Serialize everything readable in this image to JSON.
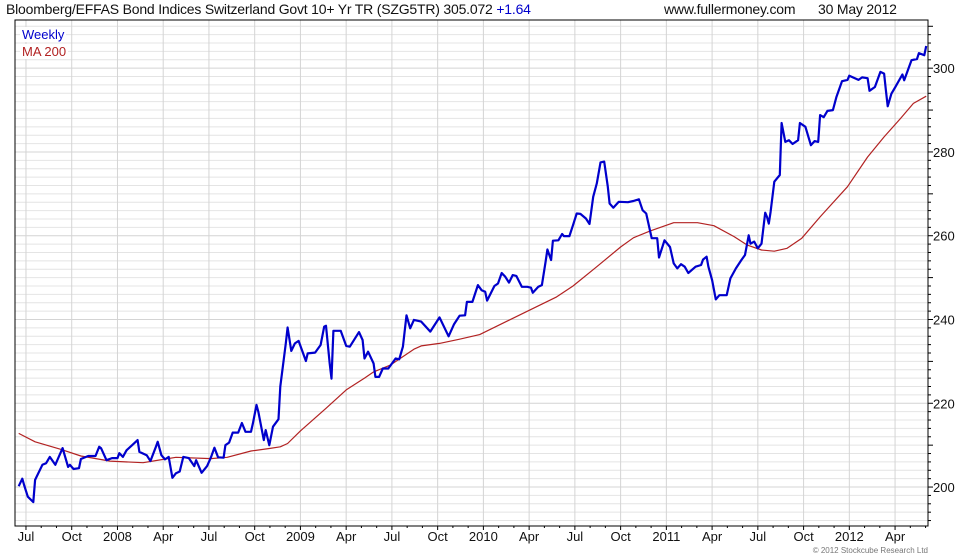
{
  "header": {
    "title": "Bloomberg/EFFAS Bond Indices Switzerland Govt 10+ Yr TR (SZG5TR)",
    "last_value": "305.072",
    "change": "+1.64",
    "site": "www.fullermoney.com",
    "date": "30 May 2012"
  },
  "footer": {
    "copyright": "© 2012 Stockcube Research Ltd"
  },
  "colors": {
    "weekly": "#0000cc",
    "ma200": "#b22222",
    "grid": "#e4e4e4",
    "grid_major": "#d4d4d4"
  },
  "chart_data": {
    "type": "line",
    "title": "Bloomberg/EFFAS Bond Indices Switzerland Govt 10+ Yr TR (SZG5TR)",
    "xlabel": "",
    "ylabel": "",
    "xlim": [
      2007.44,
      2012.43
    ],
    "ylim": [
      190.7,
      311.5
    ],
    "grid": true,
    "legend_position": "top-left",
    "y_axis_side": "right",
    "yticks": [
      200,
      220,
      240,
      260,
      280,
      300
    ],
    "xticks": [
      {
        "t": 2007.5,
        "label": "Jul"
      },
      {
        "t": 2007.75,
        "label": "Oct"
      },
      {
        "t": 2008.0,
        "label": "2008"
      },
      {
        "t": 2008.25,
        "label": "Apr"
      },
      {
        "t": 2008.5,
        "label": "Jul"
      },
      {
        "t": 2008.75,
        "label": "Oct"
      },
      {
        "t": 2009.0,
        "label": "2009"
      },
      {
        "t": 2009.25,
        "label": "Apr"
      },
      {
        "t": 2009.5,
        "label": "Jul"
      },
      {
        "t": 2009.75,
        "label": "Oct"
      },
      {
        "t": 2010.0,
        "label": "2010"
      },
      {
        "t": 2010.25,
        "label": "Apr"
      },
      {
        "t": 2010.5,
        "label": "Jul"
      },
      {
        "t": 2010.75,
        "label": "Oct"
      },
      {
        "t": 2011.0,
        "label": "2011"
      },
      {
        "t": 2011.25,
        "label": "Apr"
      },
      {
        "t": 2011.5,
        "label": "Jul"
      },
      {
        "t": 2011.75,
        "label": "Oct"
      },
      {
        "t": 2012.0,
        "label": "2012"
      },
      {
        "t": 2012.25,
        "label": "Apr"
      }
    ],
    "series": [
      {
        "name": "Weekly",
        "color": "#0000cc",
        "points": [
          [
            2007.46,
            200.2
          ],
          [
            2007.48,
            202
          ],
          [
            2007.49,
            200.5
          ],
          [
            2007.51,
            197.7
          ],
          [
            2007.54,
            196.4
          ],
          [
            2007.55,
            201.7
          ],
          [
            2007.59,
            205.3
          ],
          [
            2007.61,
            205.7
          ],
          [
            2007.63,
            207.2
          ],
          [
            2007.66,
            205.3
          ],
          [
            2007.7,
            209.3
          ],
          [
            2007.73,
            204.8
          ],
          [
            2007.74,
            205.3
          ],
          [
            2007.76,
            204.3
          ],
          [
            2007.79,
            204.5
          ],
          [
            2007.8,
            206.7
          ],
          [
            2007.84,
            207.4
          ],
          [
            2007.88,
            207.4
          ],
          [
            2007.9,
            209.6
          ],
          [
            2007.91,
            209.3
          ],
          [
            2007.94,
            206.4
          ],
          [
            2007.97,
            206.9
          ],
          [
            2008.0,
            206.9
          ],
          [
            2008.01,
            208.1
          ],
          [
            2008.03,
            207.2
          ],
          [
            2008.05,
            208.8
          ],
          [
            2008.08,
            210
          ],
          [
            2008.11,
            211.2
          ],
          [
            2008.12,
            208.4
          ],
          [
            2008.16,
            207.6
          ],
          [
            2008.18,
            206.2
          ],
          [
            2008.21,
            209.6
          ],
          [
            2008.22,
            210.8
          ],
          [
            2008.24,
            207.6
          ],
          [
            2008.26,
            206.6
          ],
          [
            2008.28,
            207.2
          ],
          [
            2008.3,
            202.2
          ],
          [
            2008.32,
            203.3
          ],
          [
            2008.34,
            203.7
          ],
          [
            2008.36,
            207.2
          ],
          [
            2008.39,
            206.9
          ],
          [
            2008.42,
            205
          ],
          [
            2008.43,
            206.4
          ],
          [
            2008.46,
            203.4
          ],
          [
            2008.49,
            205
          ],
          [
            2008.51,
            207
          ],
          [
            2008.53,
            209.4
          ],
          [
            2008.55,
            207.1
          ],
          [
            2008.58,
            207
          ],
          [
            2008.59,
            210
          ],
          [
            2008.61,
            210.6
          ],
          [
            2008.63,
            213
          ],
          [
            2008.66,
            213
          ],
          [
            2008.68,
            215.3
          ],
          [
            2008.7,
            213.2
          ],
          [
            2008.73,
            213.2
          ],
          [
            2008.74,
            215.2
          ],
          [
            2008.76,
            219.6
          ],
          [
            2008.77,
            218
          ],
          [
            2008.8,
            211.2
          ],
          [
            2008.81,
            213.6
          ],
          [
            2008.83,
            210
          ],
          [
            2008.85,
            214.4
          ],
          [
            2008.88,
            216.2
          ],
          [
            2008.89,
            224
          ],
          [
            2008.92,
            234.3
          ],
          [
            2008.93,
            238.1
          ],
          [
            2008.95,
            232.5
          ],
          [
            2008.97,
            234.3
          ],
          [
            2008.99,
            234.9
          ],
          [
            2009.03,
            230.1
          ],
          [
            2009.04,
            231.9
          ],
          [
            2009.08,
            232.1
          ],
          [
            2009.11,
            233.9
          ],
          [
            2009.13,
            238.3
          ],
          [
            2009.14,
            238.5
          ],
          [
            2009.16,
            229.5
          ],
          [
            2009.17,
            225.9
          ],
          [
            2009.18,
            237.3
          ],
          [
            2009.22,
            237.3
          ],
          [
            2009.25,
            233.7
          ],
          [
            2009.27,
            233.5
          ],
          [
            2009.32,
            237
          ],
          [
            2009.34,
            235.1
          ],
          [
            2009.35,
            230.7
          ],
          [
            2009.37,
            232.3
          ],
          [
            2009.4,
            229.5
          ],
          [
            2009.41,
            226.3
          ],
          [
            2009.43,
            226.3
          ],
          [
            2009.45,
            228.3
          ],
          [
            2009.48,
            228.3
          ],
          [
            2009.52,
            230.7
          ],
          [
            2009.54,
            230.5
          ],
          [
            2009.56,
            233.5
          ],
          [
            2009.58,
            241
          ],
          [
            2009.6,
            237.9
          ],
          [
            2009.62,
            239.9
          ],
          [
            2009.66,
            239.5
          ],
          [
            2009.71,
            237.1
          ],
          [
            2009.76,
            240.5
          ],
          [
            2009.81,
            236
          ],
          [
            2009.84,
            238.9
          ],
          [
            2009.87,
            240.9
          ],
          [
            2009.9,
            241
          ],
          [
            2009.91,
            244.2
          ],
          [
            2009.94,
            244.2
          ],
          [
            2009.97,
            248.2
          ],
          [
            2009.99,
            247
          ],
          [
            2010.01,
            246.6
          ],
          [
            2010.02,
            244.5
          ],
          [
            2010.06,
            248
          ],
          [
            2010.08,
            248.6
          ],
          [
            2010.1,
            251.1
          ],
          [
            2010.12,
            250.2
          ],
          [
            2010.14,
            248.8
          ],
          [
            2010.16,
            250.6
          ],
          [
            2010.18,
            250.4
          ],
          [
            2010.21,
            247.8
          ],
          [
            2010.24,
            247.8
          ],
          [
            2010.26,
            247.6
          ],
          [
            2010.27,
            246.4
          ],
          [
            2010.3,
            247.8
          ],
          [
            2010.32,
            248.2
          ],
          [
            2010.34,
            253.8
          ],
          [
            2010.35,
            256.7
          ],
          [
            2010.37,
            254.2
          ],
          [
            2010.38,
            258.8
          ],
          [
            2010.41,
            258.9
          ],
          [
            2010.43,
            260.4
          ],
          [
            2010.44,
            259.9
          ],
          [
            2010.47,
            259.9
          ],
          [
            2010.49,
            262.5
          ],
          [
            2010.51,
            265.3
          ],
          [
            2010.53,
            265.2
          ],
          [
            2010.56,
            264.1
          ],
          [
            2010.58,
            262.8
          ],
          [
            2010.6,
            269.3
          ],
          [
            2010.62,
            272.5
          ],
          [
            2010.64,
            277.5
          ],
          [
            2010.66,
            277.7
          ],
          [
            2010.68,
            271.7
          ],
          [
            2010.69,
            267.7
          ],
          [
            2010.71,
            266.7
          ],
          [
            2010.74,
            268.1
          ],
          [
            2010.79,
            268
          ],
          [
            2010.82,
            268.3
          ],
          [
            2010.85,
            268.7
          ],
          [
            2010.87,
            266.1
          ],
          [
            2010.89,
            265.3
          ],
          [
            2010.92,
            259.4
          ],
          [
            2010.95,
            259.4
          ],
          [
            2010.96,
            254.8
          ],
          [
            2010.99,
            258.9
          ],
          [
            2011.02,
            257.3
          ],
          [
            2011.04,
            253.4
          ],
          [
            2011.06,
            252.2
          ],
          [
            2011.08,
            253.2
          ],
          [
            2011.1,
            252.6
          ],
          [
            2011.12,
            251.1
          ],
          [
            2011.16,
            252.6
          ],
          [
            2011.19,
            253
          ],
          [
            2011.2,
            254.3
          ],
          [
            2011.22,
            255
          ],
          [
            2011.23,
            252.6
          ],
          [
            2011.25,
            249.4
          ],
          [
            2011.27,
            244.8
          ],
          [
            2011.29,
            245.8
          ],
          [
            2011.33,
            245.8
          ],
          [
            2011.35,
            249.8
          ],
          [
            2011.38,
            252.2
          ],
          [
            2011.41,
            254.2
          ],
          [
            2011.43,
            255.4
          ],
          [
            2011.45,
            260.1
          ],
          [
            2011.46,
            258.1
          ],
          [
            2011.48,
            258.6
          ],
          [
            2011.5,
            257
          ],
          [
            2011.52,
            258.1
          ],
          [
            2011.54,
            265.5
          ],
          [
            2011.55,
            264.5
          ],
          [
            2011.56,
            262.9
          ],
          [
            2011.57,
            265.7
          ],
          [
            2011.59,
            272.9
          ],
          [
            2011.62,
            274.5
          ],
          [
            2011.63,
            286.9
          ],
          [
            2011.65,
            282.4
          ],
          [
            2011.67,
            282.8
          ],
          [
            2011.69,
            281.9
          ],
          [
            2011.72,
            282.8
          ],
          [
            2011.73,
            286.9
          ],
          [
            2011.76,
            286
          ],
          [
            2011.79,
            281.6
          ],
          [
            2011.81,
            282.6
          ],
          [
            2011.83,
            282.4
          ],
          [
            2011.84,
            288.8
          ],
          [
            2011.86,
            288.3
          ],
          [
            2011.88,
            289.8
          ],
          [
            2011.91,
            290
          ],
          [
            2011.93,
            293.2
          ],
          [
            2011.96,
            296.9
          ],
          [
            2011.99,
            297.2
          ],
          [
            2012.0,
            298.2
          ],
          [
            2012.05,
            297.2
          ],
          [
            2012.07,
            297.8
          ],
          [
            2012.1,
            297.6
          ],
          [
            2012.11,
            294.6
          ],
          [
            2012.14,
            295.5
          ],
          [
            2012.17,
            299.1
          ],
          [
            2012.19,
            298.7
          ],
          [
            2012.2,
            294.7
          ],
          [
            2012.21,
            290.9
          ],
          [
            2012.23,
            293.9
          ],
          [
            2012.25,
            295.4
          ],
          [
            2012.29,
            298.5
          ],
          [
            2012.3,
            297.1
          ],
          [
            2012.34,
            301.9
          ],
          [
            2012.37,
            302.2
          ],
          [
            2012.38,
            303.6
          ],
          [
            2012.41,
            303.1
          ],
          [
            2012.42,
            305.3
          ]
        ]
      },
      {
        "name": "MA 200",
        "color": "#b22222",
        "points": [
          [
            2007.46,
            212.8
          ],
          [
            2007.55,
            210.8
          ],
          [
            2007.69,
            209
          ],
          [
            2007.8,
            207.4
          ],
          [
            2007.96,
            206.2
          ],
          [
            2008.14,
            205.8
          ],
          [
            2008.25,
            206.6
          ],
          [
            2008.32,
            207.1
          ],
          [
            2008.51,
            206.8
          ],
          [
            2008.6,
            207.1
          ],
          [
            2008.73,
            208.6
          ],
          [
            2008.83,
            209.2
          ],
          [
            2008.89,
            209.6
          ],
          [
            2008.93,
            210.4
          ],
          [
            2009.0,
            213.4
          ],
          [
            2009.14,
            218.8
          ],
          [
            2009.25,
            223.2
          ],
          [
            2009.35,
            226
          ],
          [
            2009.4,
            227.5
          ],
          [
            2009.49,
            229.1
          ],
          [
            2009.62,
            232.9
          ],
          [
            2009.66,
            233.7
          ],
          [
            2009.76,
            234.3
          ],
          [
            2009.87,
            235.3
          ],
          [
            2009.98,
            236.4
          ],
          [
            2010.26,
            242.4
          ],
          [
            2010.4,
            245.4
          ],
          [
            2010.49,
            248
          ],
          [
            2010.62,
            252.6
          ],
          [
            2010.75,
            257.3
          ],
          [
            2010.82,
            259.5
          ],
          [
            2010.91,
            261.1
          ],
          [
            2011.04,
            263.1
          ],
          [
            2011.17,
            263.1
          ],
          [
            2011.26,
            262.4
          ],
          [
            2011.37,
            259.8
          ],
          [
            2011.44,
            257.8
          ],
          [
            2011.52,
            256.6
          ],
          [
            2011.59,
            256.3
          ],
          [
            2011.66,
            257
          ],
          [
            2011.74,
            259.4
          ],
          [
            2011.84,
            264.5
          ],
          [
            2011.99,
            271.7
          ],
          [
            2012.1,
            278.8
          ],
          [
            2012.19,
            283.6
          ],
          [
            2012.28,
            288
          ],
          [
            2012.35,
            291.6
          ],
          [
            2012.42,
            293.3
          ]
        ]
      }
    ]
  }
}
